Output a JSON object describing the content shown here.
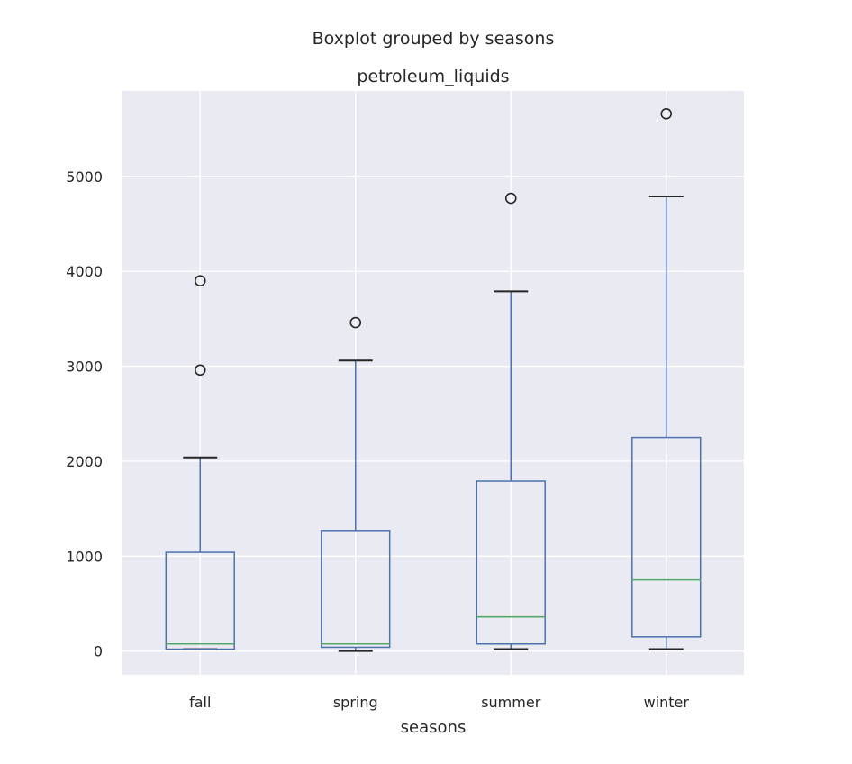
{
  "chart_data": {
    "type": "boxplot",
    "suptitle": "Boxplot grouped by seasons",
    "title": "petroleum_liquids",
    "xlabel": "seasons",
    "ylabel": "",
    "categories": [
      "fall",
      "spring",
      "summer",
      "winter"
    ],
    "ylim": [
      -250,
      5900
    ],
    "yticks": [
      0,
      1000,
      2000,
      3000,
      4000,
      5000
    ],
    "ytick_labels": [
      "0",
      "1000",
      "2000",
      "3000",
      "4000",
      "5000"
    ],
    "grid": true,
    "boxes": [
      {
        "category": "fall",
        "whisker_low": 20,
        "q1": 20,
        "median": 75,
        "q3": 1040,
        "whisker_high": 2040,
        "fliers": [
          2960,
          3900
        ]
      },
      {
        "category": "spring",
        "whisker_low": 0,
        "q1": 40,
        "median": 75,
        "q3": 1270,
        "whisker_high": 3060,
        "fliers": [
          3460
        ]
      },
      {
        "category": "summer",
        "whisker_low": 20,
        "q1": 75,
        "median": 360,
        "q3": 1790,
        "whisker_high": 3790,
        "fliers": [
          4770
        ]
      },
      {
        "category": "winter",
        "whisker_low": 20,
        "q1": 150,
        "median": 750,
        "q3": 2250,
        "whisker_high": 4790,
        "fliers": [
          5660
        ]
      }
    ],
    "colors": {
      "axes_background": "#eaeaf2",
      "grid": "#ffffff",
      "box": "#4c72b0",
      "median": "#55a868",
      "flier": "#262626"
    }
  }
}
